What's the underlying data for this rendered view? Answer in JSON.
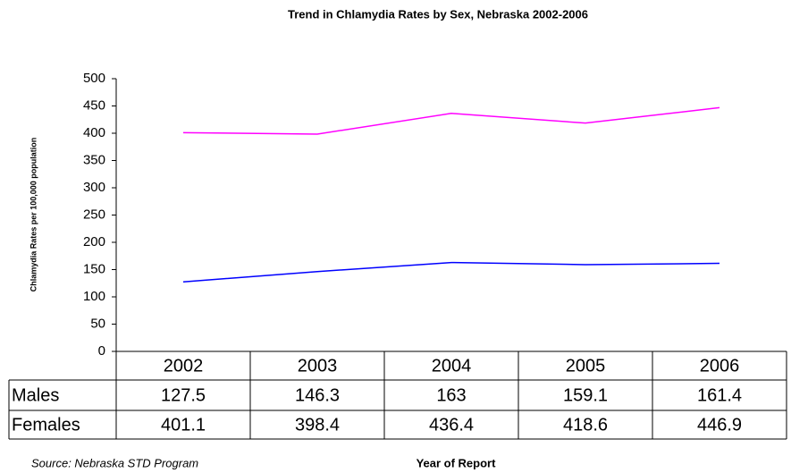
{
  "chart_data": {
    "type": "line",
    "title": "Trend in Chlamydia Rates by Sex, Nebraska 2002-2006",
    "y_label": "Chlamydia Rates per 100,000 population",
    "x_label": "Year of Report",
    "source": "Source:  Nebraska STD Program",
    "categories": [
      "2002",
      "2003",
      "2004",
      "2005",
      "2006"
    ],
    "series": [
      {
        "name": "Males",
        "color": "#0000ff",
        "values": [
          127.5,
          146.3,
          163,
          159.1,
          161.4
        ]
      },
      {
        "name": "Females",
        "color": "#ff00ff",
        "values": [
          401.1,
          398.4,
          436.4,
          418.6,
          446.9
        ]
      }
    ],
    "ylim": [
      0,
      500
    ],
    "yticks": [
      0,
      50,
      100,
      150,
      200,
      250,
      300,
      350,
      400,
      450,
      500
    ],
    "grid": false
  }
}
